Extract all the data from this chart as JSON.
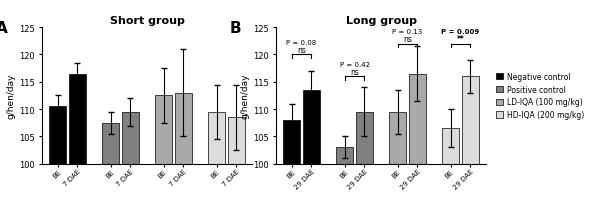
{
  "panel_A": {
    "title": "Short group",
    "label": "A",
    "bar_values": [
      [
        110.5,
        116.5
      ],
      [
        107.5,
        109.5
      ],
      [
        112.5,
        113.0
      ],
      [
        109.5,
        108.5
      ]
    ],
    "bar_errors": [
      [
        2.0,
        2.0
      ],
      [
        2.0,
        2.5
      ],
      [
        5.0,
        8.0
      ],
      [
        5.0,
        6.0
      ]
    ],
    "x_labels": [
      "BE",
      "7 DAE",
      "BE",
      "7 DAE",
      "BE",
      "7 DAE",
      "BE",
      "7 DAE"
    ],
    "ylabel": "g/hen/day",
    "ylim": [
      100,
      125
    ],
    "yticks": [
      100,
      105,
      110,
      115,
      120,
      125
    ]
  },
  "panel_B": {
    "title": "Long group",
    "label": "B",
    "bar_values": [
      [
        108.0,
        113.5
      ],
      [
        103.0,
        109.5
      ],
      [
        109.5,
        116.5
      ],
      [
        106.5,
        116.0
      ]
    ],
    "bar_errors": [
      [
        3.0,
        3.5
      ],
      [
        2.0,
        4.5
      ],
      [
        4.0,
        5.0
      ],
      [
        3.5,
        3.0
      ]
    ],
    "x_labels": [
      "BE",
      "29 DAE",
      "BE",
      "29 DAE",
      "BE",
      "29 DAE",
      "BE",
      "29 DAE"
    ],
    "ylabel": "g/hen/day",
    "ylim": [
      100,
      125
    ],
    "yticks": [
      100,
      105,
      110,
      115,
      120,
      125
    ]
  },
  "bar_colors": [
    "#000000",
    "#808080",
    "#a9a9a9",
    "#dcdcdc"
  ],
  "legend_labels": [
    "Negative control",
    "Positive control",
    "LD-IQA (100 mg/kg)",
    "HD-IQA (200 mg/kg)"
  ],
  "legend_colors": [
    "#000000",
    "#808080",
    "#a9a9a9",
    "#dcdcdc"
  ]
}
